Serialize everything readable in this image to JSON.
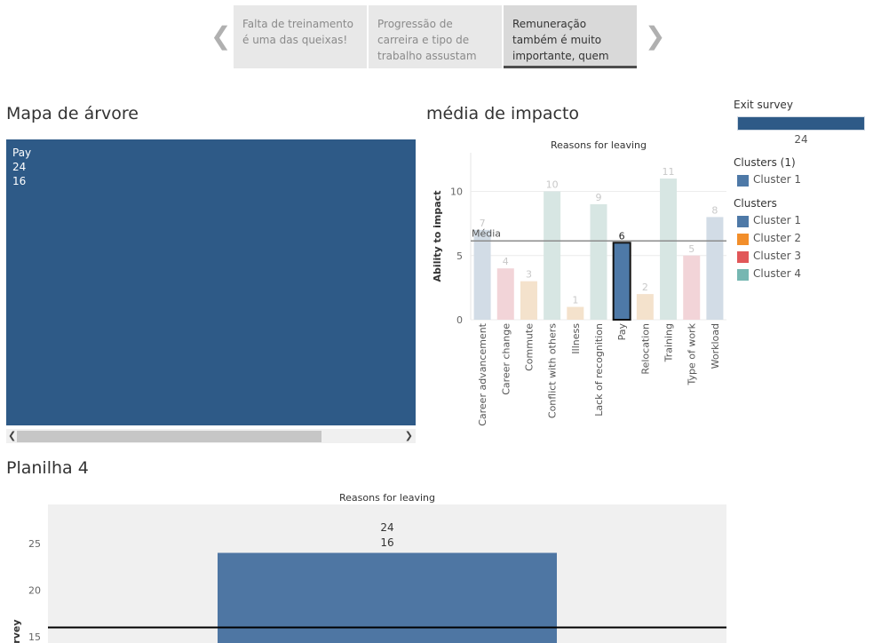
{
  "story": {
    "points": [
      {
        "text": "Falta de treinamento é uma das queixas!"
      },
      {
        "text": "Progressão de carreira e tipo de trabalho assustam um pouco."
      },
      {
        "text": "Remuneração também é muito importante, quem não quer ganhar"
      }
    ],
    "active_index": 2
  },
  "sheets": {
    "treemap_title": "Mapa de árvore",
    "impact_title": "média de impacto",
    "sheet4_title": "Planilha 4"
  },
  "treemap": {
    "labels": [
      "Pay",
      "24",
      "16"
    ]
  },
  "legend": {
    "exit_survey_title": "Exit survey",
    "exit_survey_value": "24",
    "clusters1_title": "Clusters (1)",
    "clusters1_items": [
      {
        "label": "Cluster 1",
        "color": "#4e79a7"
      }
    ],
    "clusters_title": "Clusters",
    "clusters_items": [
      {
        "label": "Cluster 1",
        "color": "#4e79a7"
      },
      {
        "label": "Cluster 2",
        "color": "#f28e2b"
      },
      {
        "label": "Cluster 3",
        "color": "#e15759"
      },
      {
        "label": "Cluster 4",
        "color": "#76b7b2"
      }
    ]
  },
  "chart_data": [
    {
      "type": "bar",
      "title": "Reasons for leaving",
      "ylabel": "Ability to impact",
      "xlabel": "",
      "categories": [
        "Career advancement",
        "Career change",
        "Commute",
        "Conflict with others",
        "Illness",
        "Lack of recognition",
        "Pay",
        "Relocation",
        "Training",
        "Type of work",
        "Workload"
      ],
      "values": [
        7,
        4,
        3,
        10,
        1,
        9,
        6,
        2,
        11,
        5,
        8
      ],
      "colors": [
        "#d2dce6",
        "#f2d4d8",
        "#f4e2cc",
        "#d7e6e3",
        "#f4e2cc",
        "#d7e6e3",
        "#4e79a7",
        "#f4e2cc",
        "#d7e6e3",
        "#f2d4d8",
        "#d2dce6"
      ],
      "highlight": "Pay",
      "ylim": [
        0,
        13
      ],
      "yticks": [
        0,
        5,
        10
      ],
      "reference_line": {
        "label": "Média",
        "value": 6.0
      },
      "grid": true
    },
    {
      "type": "bar",
      "title": "Reasons for leaving",
      "ylabel": "Exit survey",
      "ylabel_visible": "urvey",
      "categories": [
        "Pay"
      ],
      "values": [
        24
      ],
      "value_labels": [
        "24",
        "16"
      ],
      "yticks": [
        15,
        20,
        25
      ],
      "reference_line": {
        "value": 16
      },
      "ylim_visible": [
        14.8,
        29.4
      ]
    }
  ]
}
